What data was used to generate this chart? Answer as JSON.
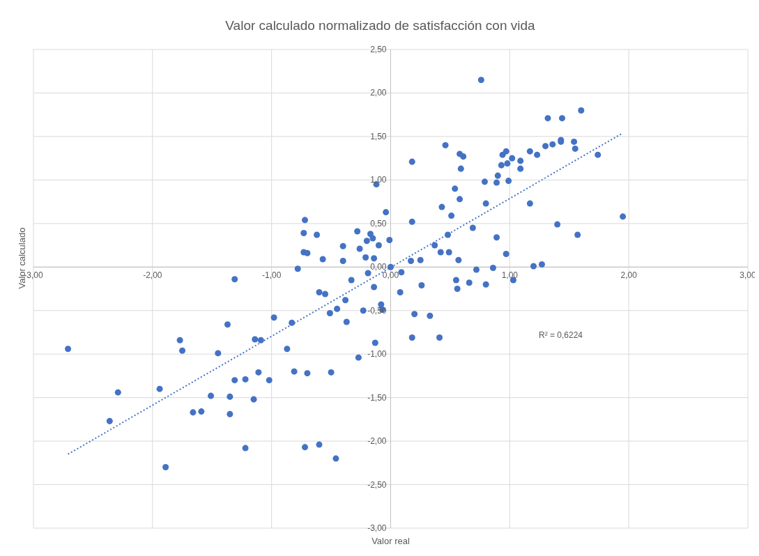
{
  "chart_data": {
    "type": "scatter",
    "title": "Valor calculado normalizado de satisfacción con vida",
    "xlabel": "Valor real",
    "ylabel": "Valor calculado",
    "xlim": [
      -3,
      3
    ],
    "ylim": [
      -3,
      2.5
    ],
    "xticks": [
      {
        "value": -3,
        "label": "-3,00"
      },
      {
        "value": -2,
        "label": "-2,00"
      },
      {
        "value": -1,
        "label": "-1,00"
      },
      {
        "value": 0,
        "label": "0,00"
      },
      {
        "value": 1,
        "label": "1,00"
      },
      {
        "value": 2,
        "label": "2,00"
      },
      {
        "value": 3,
        "label": "3,00"
      }
    ],
    "yticks": [
      {
        "value": -3,
        "label": "-3,00"
      },
      {
        "value": -2.5,
        "label": "-2,50"
      },
      {
        "value": -2,
        "label": "-2,00"
      },
      {
        "value": -1.5,
        "label": "-1,50"
      },
      {
        "value": -1,
        "label": "-1,00"
      },
      {
        "value": -0.5,
        "label": "-0,50"
      },
      {
        "value": 0,
        "label": "0,00"
      },
      {
        "value": 0.5,
        "label": "0,50"
      },
      {
        "value": 1,
        "label": "1,00"
      },
      {
        "value": 1.5,
        "label": "1,50"
      },
      {
        "value": 2,
        "label": "2,00"
      },
      {
        "value": 2.5,
        "label": "2,50"
      }
    ],
    "grid": true,
    "annotations": [
      "R² = 0,6224"
    ],
    "series": [
      {
        "type": "scatter",
        "marker": "circle",
        "color": "#4472c4",
        "x": [
          -2.71,
          -2.36,
          -2.29,
          -1.94,
          -1.89,
          -1.77,
          -1.75,
          -1.66,
          -1.59,
          -1.51,
          -1.45,
          -1.37,
          -1.35,
          -1.35,
          -1.31,
          -1.31,
          -1.22,
          -1.22,
          -1.15,
          -1.14,
          -1.11,
          -1.09,
          -1.02,
          -0.98,
          -0.87,
          -0.83,
          -0.81,
          -0.78,
          -0.73,
          -0.73,
          -0.72,
          -0.72,
          -0.7,
          -0.7,
          -0.62,
          -0.6,
          -0.6,
          -0.57,
          -0.55,
          -0.51,
          -0.5,
          -0.46,
          -0.45,
          -0.4,
          -0.4,
          -0.38,
          -0.37,
          -0.33,
          -0.28,
          -0.27,
          -0.26,
          -0.23,
          -0.21,
          -0.2,
          -0.19,
          -0.17,
          -0.15,
          -0.14,
          -0.14,
          -0.13,
          -0.12,
          -0.1,
          -0.08,
          -0.07,
          -0.04,
          -0.01,
          0.0,
          0.08,
          0.09,
          0.17,
          0.18,
          0.18,
          0.18,
          0.2,
          0.25,
          0.26,
          0.33,
          0.37,
          0.41,
          0.42,
          0.43,
          0.46,
          0.48,
          0.49,
          0.51,
          0.54,
          0.55,
          0.56,
          0.57,
          0.58,
          0.58,
          0.59,
          0.61,
          0.66,
          0.69,
          0.72,
          0.76,
          0.79,
          0.8,
          0.8,
          0.86,
          0.89,
          0.89,
          0.9,
          0.93,
          0.94,
          0.97,
          0.97,
          0.98,
          0.99,
          1.02,
          1.03,
          1.09,
          1.09,
          1.17,
          1.17,
          1.2,
          1.23,
          1.27,
          1.3,
          1.32,
          1.36,
          1.4,
          1.43,
          1.43,
          1.44,
          1.54,
          1.55,
          1.57,
          1.6,
          1.74,
          1.95
        ],
        "values": [
          -0.94,
          -1.77,
          -1.44,
          -1.4,
          -2.3,
          -0.84,
          -0.96,
          -1.67,
          -1.66,
          -1.48,
          -0.99,
          -0.66,
          -1.49,
          -1.69,
          -0.14,
          -1.3,
          -1.29,
          -2.08,
          -1.52,
          -0.83,
          -1.21,
          -0.84,
          -1.3,
          -0.58,
          -0.94,
          -0.64,
          -1.2,
          -0.02,
          0.17,
          0.39,
          0.54,
          -2.07,
          -1.22,
          0.16,
          0.37,
          -0.29,
          -2.04,
          0.09,
          -0.31,
          -0.53,
          -1.21,
          -2.2,
          -0.48,
          0.24,
          0.07,
          -0.38,
          -0.63,
          -0.15,
          0.41,
          -1.04,
          0.21,
          -0.5,
          0.11,
          0.3,
          -0.07,
          0.38,
          0.33,
          0.1,
          -0.23,
          -0.87,
          0.95,
          0.25,
          -0.43,
          -0.49,
          0.63,
          0.31,
          0.0,
          -0.29,
          -0.06,
          0.07,
          0.52,
          1.21,
          -0.81,
          -0.54,
          0.08,
          -0.21,
          -0.56,
          0.25,
          -0.81,
          0.17,
          0.69,
          1.4,
          0.37,
          0.17,
          0.59,
          0.9,
          -0.15,
          -0.25,
          0.08,
          0.78,
          1.3,
          1.13,
          1.27,
          -0.18,
          0.45,
          -0.03,
          2.15,
          0.98,
          0.73,
          -0.2,
          -0.01,
          0.34,
          0.97,
          1.05,
          1.17,
          1.29,
          1.33,
          0.15,
          1.19,
          0.99,
          1.25,
          -0.15,
          1.22,
          1.13,
          0.73,
          1.33,
          0.01,
          1.29,
          0.03,
          1.39,
          1.71,
          1.41,
          0.49,
          1.46,
          1.44,
          1.71,
          1.44,
          1.36,
          0.37,
          1.8,
          1.29,
          0.58
        ]
      },
      {
        "type": "line",
        "color": "#4472c4",
        "line_style": "dotted",
        "marker": "none",
        "x": [
          -2.71,
          1.95
        ],
        "values": [
          -2.15,
          1.54
        ]
      }
    ]
  }
}
